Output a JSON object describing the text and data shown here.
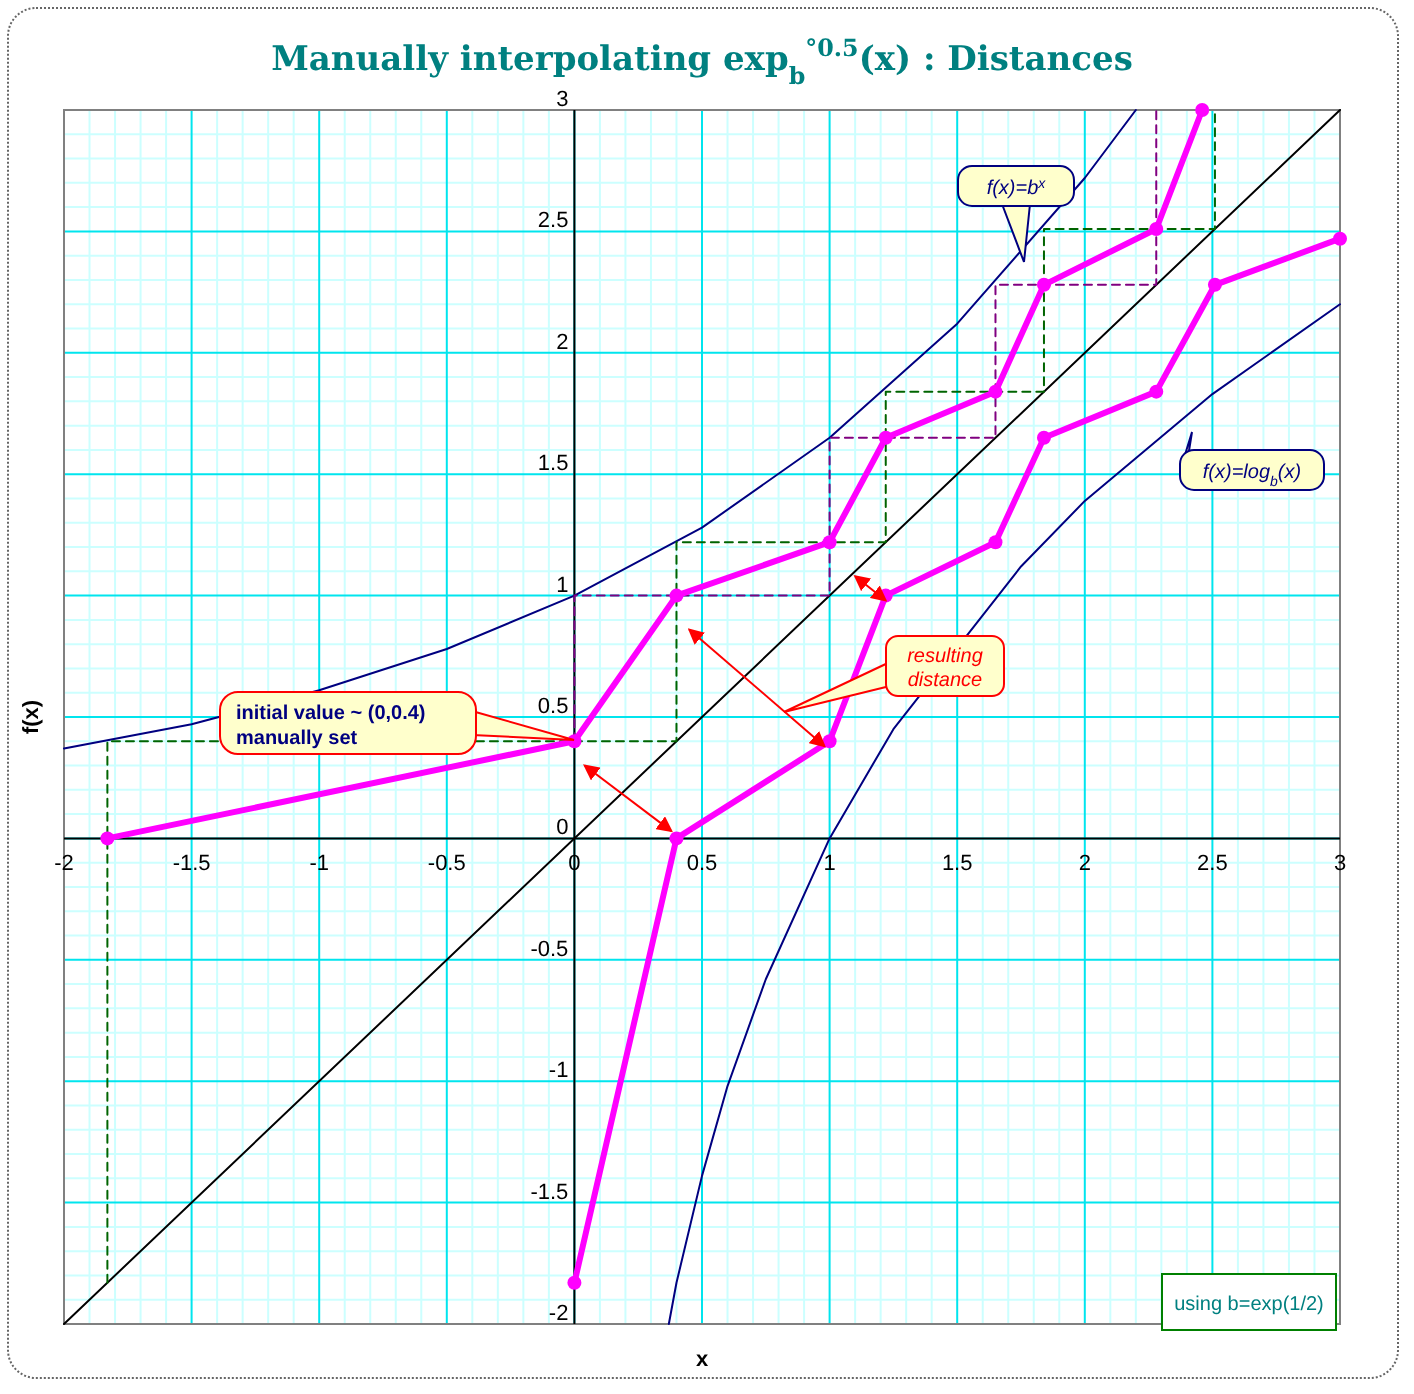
{
  "chart_data": {
    "type": "line",
    "title": "Manually interpolating exp$_{b}$$^{°0.5}$(x) : Distances",
    "xlabel": "x",
    "ylabel": "f(x)",
    "xlim": [
      -2,
      3
    ],
    "ylim": [
      -2,
      3
    ],
    "xticks": [
      -2,
      {
        "value": -1.9,
        "label": null
      },
      {
        "value": -1.8,
        "label": null
      },
      {
        "value": -1.7,
        "label": null
      },
      {
        "value": -1.6,
        "label": null
      },
      -1.5,
      {
        "value": -1.4,
        "label": null
      },
      {
        "value": -1.3,
        "label": null
      },
      {
        "value": -1.2,
        "label": null
      },
      {
        "value": -1.1,
        "label": null
      },
      -1,
      {
        "value": -0.9,
        "label": null
      },
      {
        "value": -0.8,
        "label": null
      },
      {
        "value": -0.7,
        "label": null
      },
      {
        "value": -0.6,
        "label": null
      },
      -0.5,
      {
        "value": -0.4,
        "label": null
      },
      {
        "value": -0.3,
        "label": null
      },
      {
        "value": -0.2,
        "label": null
      },
      {
        "value": -0.1,
        "label": null
      },
      0,
      {
        "value": 0.1,
        "label": null
      },
      {
        "value": 0.2,
        "label": null
      },
      {
        "value": 0.3,
        "label": null
      },
      {
        "value": 0.4,
        "label": null
      },
      0.5,
      {
        "value": 0.6,
        "label": null
      },
      {
        "value": 0.7,
        "label": null
      },
      {
        "value": 0.8,
        "label": null
      },
      {
        "value": 0.9,
        "label": null
      },
      1,
      {
        "value": 1.1,
        "label": null
      },
      {
        "value": 1.2,
        "label": null
      },
      {
        "value": 1.3,
        "label": null
      },
      {
        "value": 1.4,
        "label": null
      },
      1.5,
      {
        "value": 1.6,
        "label": null
      },
      {
        "value": 1.7,
        "label": null
      },
      {
        "value": 1.8,
        "label": null
      },
      {
        "value": 1.9,
        "label": null
      },
      2,
      {
        "value": 2.1,
        "label": null
      },
      {
        "value": 2.2,
        "label": null
      },
      {
        "value": 2.3,
        "label": null
      },
      {
        "value": 2.4,
        "label": null
      },
      2.5,
      {
        "value": 2.6,
        "label": null
      },
      {
        "value": 2.7,
        "label": null
      },
      {
        "value": 2.8,
        "label": null
      },
      {
        "value": 2.9,
        "label": null
      },
      3
    ],
    "yticks": [
      -2,
      {
        "value": -1.9,
        "label": null
      },
      {
        "value": -1.8,
        "label": null
      },
      {
        "value": -1.7,
        "label": null
      },
      {
        "value": -1.6,
        "label": null
      },
      -1.5,
      {
        "value": -1.4,
        "label": null
      },
      {
        "value": -1.3,
        "label": null
      },
      {
        "value": -1.2,
        "label": null
      },
      {
        "value": -1.1,
        "label": null
      },
      -1,
      {
        "value": -0.9,
        "label": null
      },
      {
        "value": -0.8,
        "label": null
      },
      {
        "value": -0.7,
        "label": null
      },
      {
        "value": -0.6,
        "label": null
      },
      -0.5,
      {
        "value": -0.4,
        "label": null
      },
      {
        "value": -0.3,
        "label": null
      },
      {
        "value": -0.2,
        "label": null
      },
      {
        "value": -0.1,
        "label": null
      },
      0,
      {
        "value": 0.1,
        "label": null
      },
      {
        "value": 0.2,
        "label": null
      },
      {
        "value": 0.3,
        "label": null
      },
      {
        "value": 0.4,
        "label": null
      },
      0.5,
      {
        "value": 0.6,
        "label": null
      },
      {
        "value": 0.7,
        "label": null
      },
      {
        "value": 0.8,
        "label": null
      },
      {
        "value": 0.9,
        "label": null
      },
      1,
      {
        "value": 1.1,
        "label": null
      },
      {
        "value": 1.2,
        "label": null
      },
      {
        "value": 1.3,
        "label": null
      },
      {
        "value": 1.4,
        "label": null
      },
      1.5,
      {
        "value": 1.6,
        "label": null
      },
      {
        "value": 1.7,
        "label": null
      },
      {
        "value": 1.8,
        "label": null
      },
      {
        "value": 1.9,
        "label": null
      },
      2,
      {
        "value": 2.1,
        "label": null
      },
      {
        "value": 2.2,
        "label": null
      },
      {
        "value": 2.3,
        "label": null
      },
      {
        "value": 2.4,
        "label": null
      },
      2.5,
      {
        "value": 2.6,
        "label": null
      },
      {
        "value": 2.7,
        "label": null
      },
      {
        "value": 2.8,
        "label": null
      },
      {
        "value": 2.9,
        "label": null
      },
      3
    ],
    "grid": true,
    "series": [
      {
        "color": "#000080",
        "x": [
          -2,
          -1.5,
          -1,
          -0.5,
          0,
          0.5,
          1,
          1.5,
          2,
          2.2
        ],
        "values": [
          0.37,
          0.47,
          0.61,
          0.78,
          1,
          1.28,
          1.65,
          2.12,
          2.72,
          3
        ],
        "marker": "none"
      },
      {
        "color": "#000000",
        "x": [
          -2,
          3
        ],
        "values": [
          -2,
          3
        ],
        "marker": "none"
      },
      {
        "color": "#000080",
        "x": [
          0.37,
          0.4,
          0.5,
          0.6,
          0.75,
          1,
          1.25,
          1.75,
          2,
          2.5,
          3
        ],
        "values": [
          -2,
          -1.83,
          -1.39,
          -1.02,
          -0.58,
          0,
          0.45,
          1.12,
          1.39,
          1.83,
          2.2
        ],
        "marker": "none"
      },
      {
        "color": "#006400",
        "x": [
          -1.83,
          -1.83,
          0.4,
          0.4,
          1.22,
          1.22,
          1.84,
          1.84,
          2.51,
          2.51
        ],
        "values": [
          -1.83,
          0.4,
          0.4,
          1.22,
          1.22,
          1.84,
          1.84,
          2.51,
          2.51,
          3
        ],
        "marker": "none",
        "line_style": "dashed"
      },
      {
        "color": "#800080",
        "x": [
          0,
          0,
          1,
          1,
          1.65,
          1.65,
          2.28,
          2.28
        ],
        "values": [
          0.4,
          1,
          1,
          1.65,
          1.65,
          2.28,
          2.28,
          3
        ],
        "marker": "none",
        "line_style": "dashed"
      },
      {
        "color": "#ff00ff",
        "x": [
          -1.83,
          0,
          0.4,
          1,
          1.22,
          1.65,
          1.84,
          2.28,
          2.46
        ],
        "values": [
          0,
          0.4,
          1,
          1.22,
          1.65,
          1.84,
          2.28,
          2.51,
          3
        ],
        "marker": "circle"
      },
      {
        "color": "#ff00ff",
        "x": [
          0,
          0.4,
          1,
          1.22,
          1.65,
          1.84,
          2.28,
          2.51,
          3
        ],
        "values": [
          -1.83,
          0,
          0.4,
          1,
          1.22,
          1.65,
          1.84,
          2.28,
          2.47
        ],
        "marker": "circle"
      }
    ],
    "annotations": [
      "f(x)=b$^{x}$",
      "f(x)=log$_{b}$(x)",
      "initial value ~ (0,0.4)\nmanually set",
      "resulting\ndistance",
      "using b=exp(1/2)"
    ]
  }
}
